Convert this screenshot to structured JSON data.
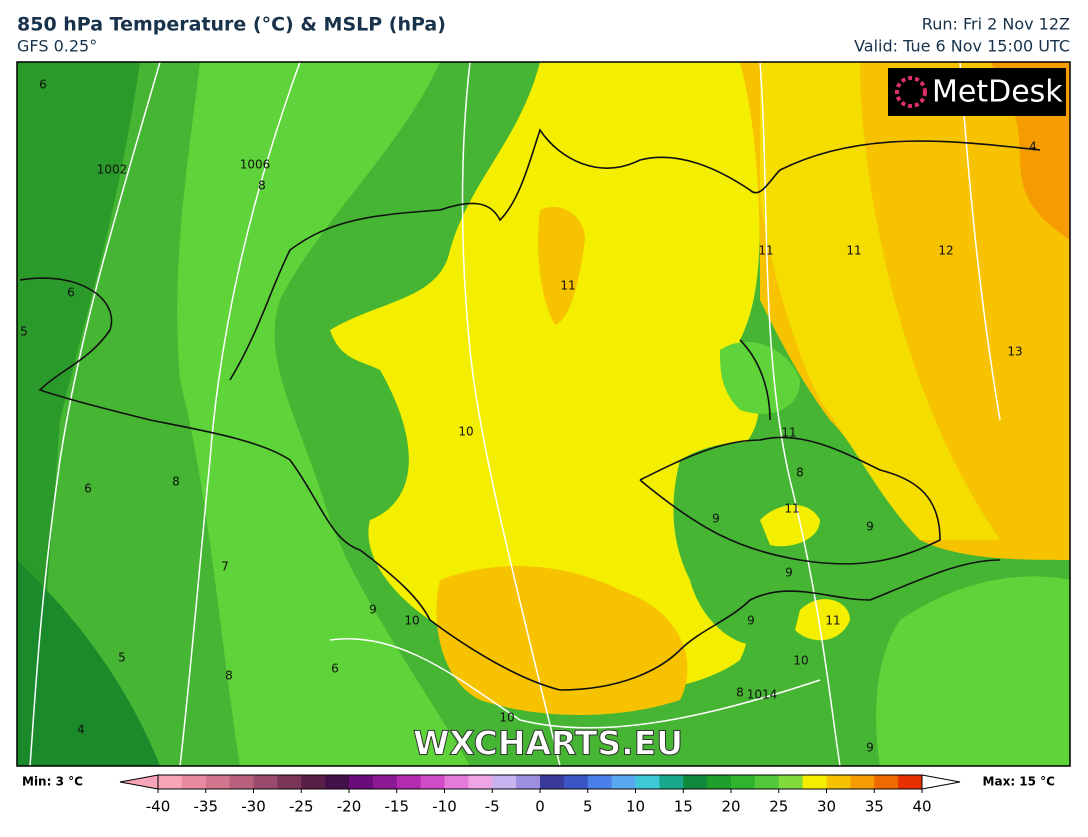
{
  "header": {
    "title": "850 hPa Temperature (°C) & MSLP (hPa)",
    "model": "GFS 0.25°",
    "run": "Run: Fri 2 Nov 12Z",
    "valid": "Valid: Tue 6 Nov 15:00 UTC"
  },
  "logo": "MetDesk",
  "watermark": "WXCHARTS.EU",
  "contour_labels": [
    "6",
    "8",
    "1002",
    "1006",
    "4",
    "11",
    "11",
    "11",
    "12",
    "13",
    "6",
    "5",
    "10",
    "11",
    "8",
    "6",
    "8",
    "9",
    "11",
    "9",
    "7",
    "9",
    "9",
    "10",
    "9",
    "11",
    "5",
    "6",
    "10",
    "8",
    "8",
    "1014",
    "4",
    "9",
    "10"
  ],
  "colorbar": {
    "min_label": "Min: 3 °C",
    "max_label": "Max: 15 °C",
    "range": [
      -40,
      40
    ],
    "ticks": [
      -40,
      -35,
      -30,
      -25,
      -20,
      -15,
      -10,
      -5,
      0,
      5,
      10,
      15,
      20,
      25,
      30,
      35,
      40
    ],
    "colors": [
      "#f7a3b8",
      "#e98aa2",
      "#d27690",
      "#b8607c",
      "#9a4a6a",
      "#7a3558",
      "#5a1f48",
      "#43104a",
      "#6a0d7a",
      "#8d1a95",
      "#b32cb0",
      "#d14dc8",
      "#e57ad9",
      "#efa5e5",
      "#c8b2f0",
      "#9d8ee0",
      "#3a3a9a",
      "#3b55c4",
      "#4a7ee8",
      "#58a8f0",
      "#3fc8d8",
      "#1aa88c",
      "#0f8a3c",
      "#1e9e2a",
      "#2fb42e",
      "#52c83a",
      "#7fdc3c",
      "#f4ef00",
      "#f7c300",
      "#f59d00",
      "#ef6a00",
      "#e83000"
    ]
  }
}
